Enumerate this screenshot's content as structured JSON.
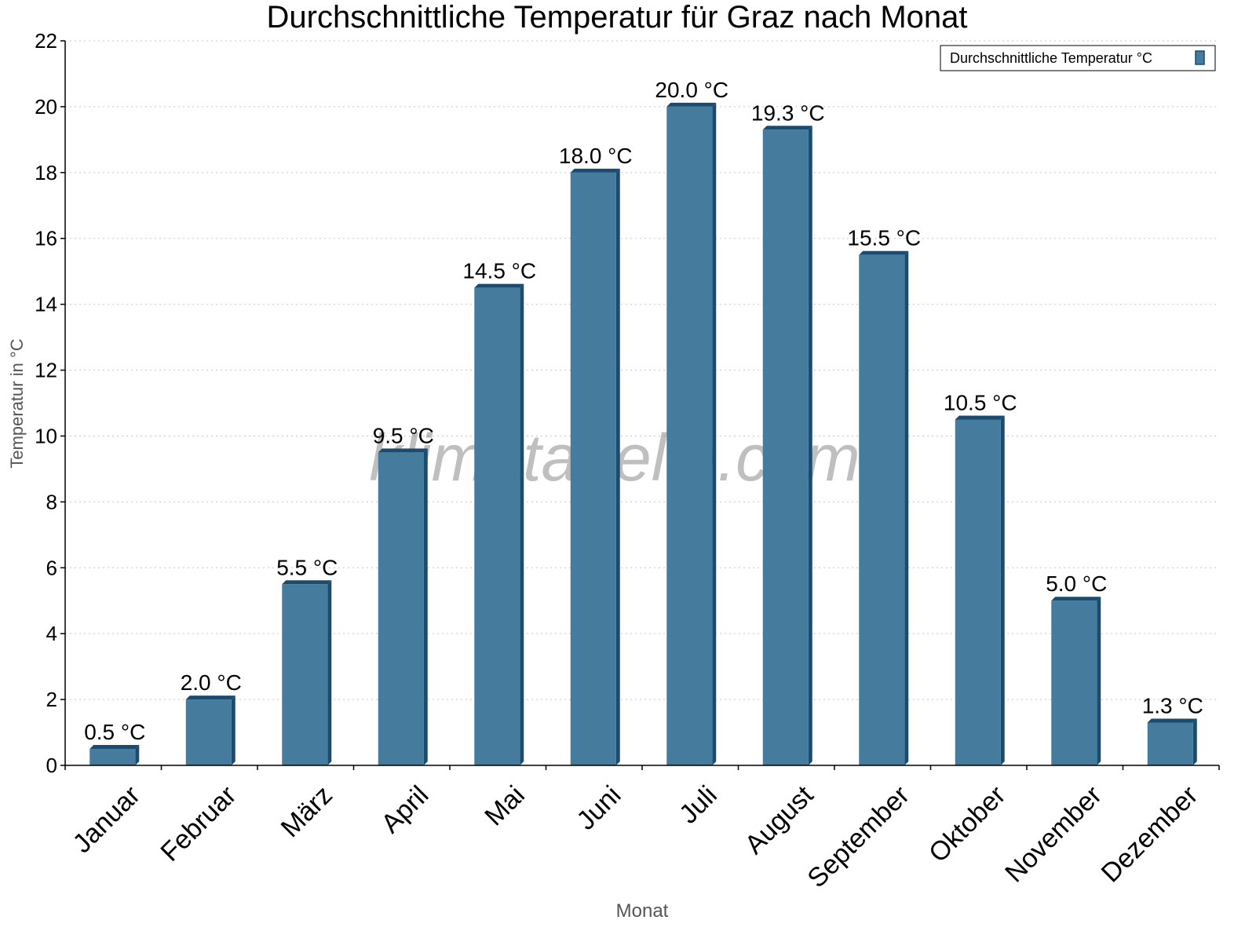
{
  "chart_data": {
    "type": "bar",
    "title": "Durchschnittliche Temperatur für Graz nach Monat",
    "xlabel": "Monat",
    "ylabel": "Temperatur in °C",
    "categories": [
      "Januar",
      "Februar",
      "März",
      "April",
      "Mai",
      "Juni",
      "Juli",
      "August",
      "September",
      "Oktober",
      "November",
      "Dezember"
    ],
    "series": [
      {
        "name": "Durchschnittliche Temperatur °C",
        "values": [
          0.5,
          2.0,
          5.5,
          9.5,
          14.5,
          18.0,
          20.0,
          19.3,
          15.5,
          10.5,
          5.0,
          1.3
        ],
        "data_labels": [
          "0.5 °C",
          "2.0 °C",
          "5.5 °C",
          "9.5 °C",
          "14.5 °C",
          "18.0 °C",
          "20.0 °C",
          "19.3 °C",
          "15.5 °C",
          "10.5 °C",
          "5.0 °C",
          "1.3 °C"
        ]
      }
    ],
    "ylim": [
      0,
      22
    ],
    "yticks": [
      "0",
      "2",
      "4",
      "6",
      "8",
      "10",
      "12",
      "14",
      "16",
      "18",
      "20",
      "22"
    ],
    "grid": "horizontal dotted",
    "legend": "top-right",
    "colors": {
      "bar": "#457b9d",
      "bar_side": "#1b4b6f",
      "grid": "#c8c8c8"
    },
    "watermark": "klimatabelle.com"
  }
}
